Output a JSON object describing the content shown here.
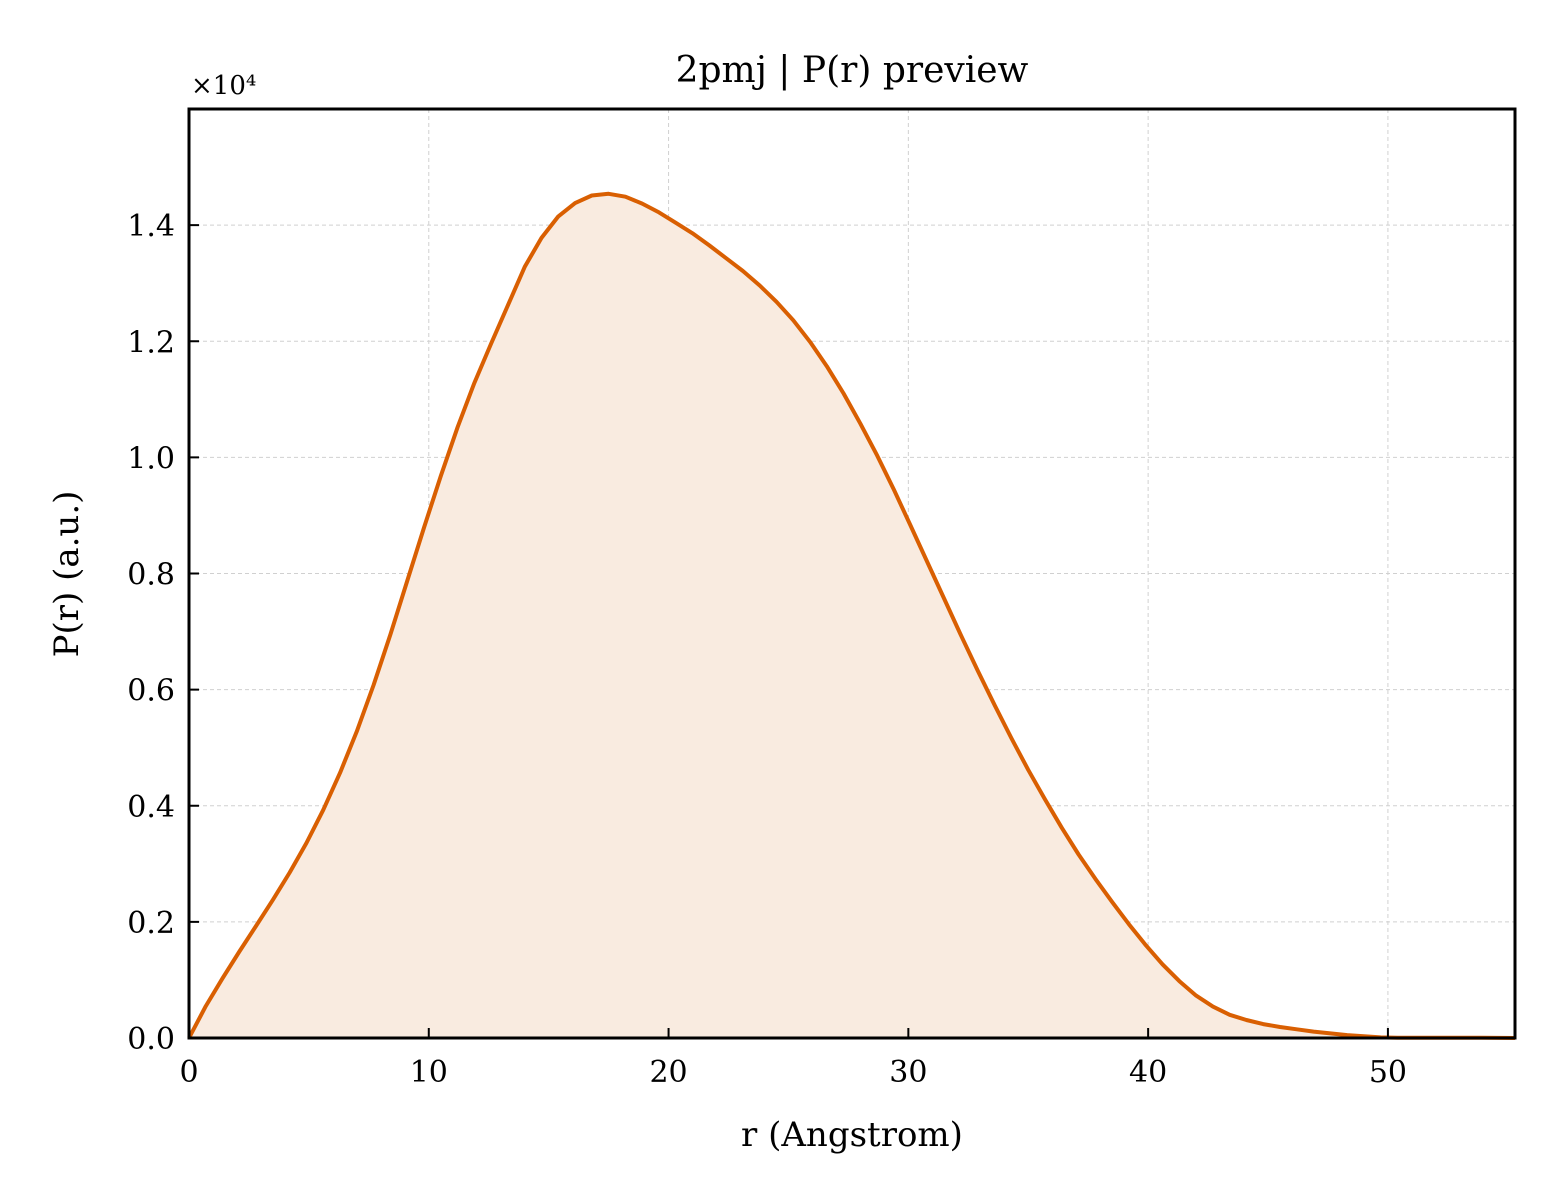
{
  "chart_data": {
    "type": "area",
    "title": "2pmj | P(r) preview",
    "xlabel": "r (Angstrom)",
    "ylabel": "P(r) (a.u.)",
    "y_scale_label": "×10⁴",
    "xlim": [
      0,
      55.3
    ],
    "ylim": [
      0,
      1.6
    ],
    "x_ticks": [
      0,
      10,
      20,
      30,
      40,
      50
    ],
    "y_ticks": [
      0.0,
      0.2,
      0.4,
      0.6,
      0.8,
      1.0,
      1.2,
      1.4
    ],
    "x_tick_labels": [
      "0",
      "10",
      "20",
      "30",
      "40",
      "50"
    ],
    "y_tick_labels": [
      "0.0",
      "0.2",
      "0.4",
      "0.6",
      "0.8",
      "1.0",
      "1.2",
      "1.4"
    ],
    "grid": true,
    "line_color": "#d95f02",
    "fill_color": "#f9ebe0",
    "series": [
      {
        "x": [
          0,
          0.7,
          1.4,
          2.1,
          2.8,
          3.5,
          4.2,
          4.9,
          5.6,
          6.3,
          7.0,
          7.7,
          8.4,
          9.1,
          9.8,
          10.5,
          11.2,
          11.9,
          12.6,
          13.3,
          14.0,
          14.7,
          15.4,
          16.1,
          16.8,
          17.5,
          18.2,
          18.9,
          19.6,
          20.3,
          21.0,
          21.7,
          22.4,
          23.1,
          23.8,
          24.5,
          25.2,
          25.9,
          26.6,
          27.3,
          28.0,
          28.7,
          29.4,
          30.1,
          30.8,
          31.5,
          32.2,
          32.9,
          33.6,
          34.3,
          35.0,
          35.7,
          36.4,
          37.1,
          37.8,
          38.5,
          39.2,
          39.9,
          40.6,
          41.3,
          42.0,
          42.7,
          43.4,
          44.1,
          44.8,
          45.5,
          46.2,
          46.9,
          47.6,
          48.3,
          49.0,
          49.7,
          50.4,
          51.1,
          51.8,
          52.5,
          53.2,
          53.9,
          54.6,
          55.3
        ],
        "y": [
          0.0,
          0.055,
          0.103,
          0.149,
          0.193,
          0.238,
          0.285,
          0.336,
          0.393,
          0.457,
          0.528,
          0.608,
          0.695,
          0.787,
          0.879,
          0.968,
          1.052,
          1.128,
          1.196,
          1.262,
          1.328,
          1.378,
          1.415,
          1.438,
          1.451,
          1.454,
          1.449,
          1.437,
          1.422,
          1.404,
          1.386,
          1.365,
          1.343,
          1.321,
          1.296,
          1.268,
          1.236,
          1.199,
          1.157,
          1.11,
          1.058,
          1.003,
          0.944,
          0.882,
          0.819,
          0.756,
          0.693,
          0.632,
          0.573,
          0.516,
          0.462,
          0.411,
          0.362,
          0.316,
          0.274,
          0.234,
          0.196,
          0.16,
          0.127,
          0.098,
          0.073,
          0.054,
          0.04,
          0.031,
          0.024,
          0.019,
          0.015,
          0.011,
          0.008,
          0.005,
          0.003,
          0.001,
          0.0005,
          0.0003,
          0.0003,
          0.0004,
          0.0005,
          0.0004,
          0.0002,
          0.0
        ]
      }
    ]
  }
}
